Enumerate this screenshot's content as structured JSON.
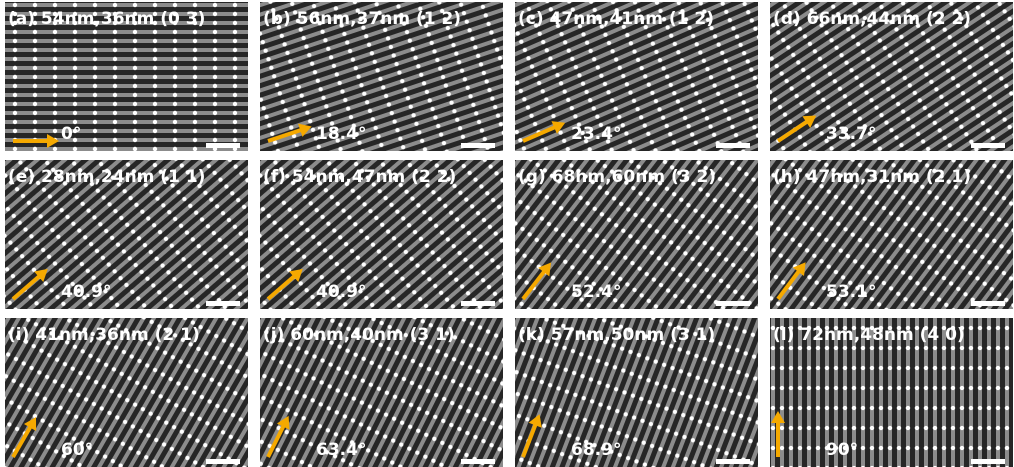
{
  "panels": [
    {
      "label": "(a) 54nm,36nm (0 3)",
      "angle": "0°"
    },
    {
      "label": "(b) 56nm,37nm (1 2)",
      "angle": "18.4°"
    },
    {
      "label": "(c) 47nm,41nm (1 2)",
      "angle": "23.4°"
    },
    {
      "label": "(d) 66nm,44nm (2 2)",
      "angle": "33.7°"
    },
    {
      "label": "(e) 28nm,24nm (1 1)",
      "angle": "40.9°"
    },
    {
      "label": "(f) 54nm,47nm (2 2)",
      "angle": "40.9°"
    },
    {
      "label": "(g) 68nm,60nm (3 2)",
      "angle": "52.4°"
    },
    {
      "label": "(h) 47nm,31nm (2 1)",
      "angle": "53.1°"
    },
    {
      "label": "(i) 41nm,36nm (2 1)",
      "angle": "60°"
    },
    {
      "label": "(j) 60nm,40nm (3 1)",
      "angle": "63.4°"
    },
    {
      "label": "(k) 57nm,50nm (3 1)",
      "angle": "68.9°"
    },
    {
      "label": "(l) 72nm,48nm (4 0)",
      "angle": "90°"
    }
  ]
}
